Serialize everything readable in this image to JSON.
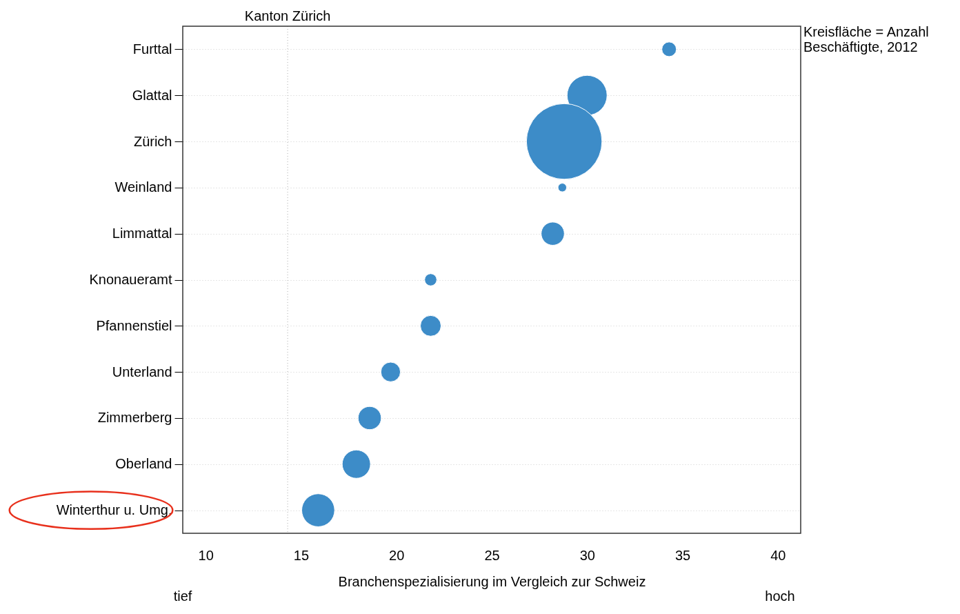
{
  "chart_data": {
    "type": "bubble",
    "orientation": "horizontal",
    "xlabel": "Branchenspezialisierung im Vergleich zur Schweiz",
    "categories": [
      "Furttal",
      "Glattal",
      "Zürich",
      "Weinland",
      "Limmattal",
      "Knonaueramt",
      "Pfannenstiel",
      "Unterland",
      "Zimmerberg",
      "Oberland",
      "Winterthur u. Umg."
    ],
    "values": [
      34.3,
      30.0,
      28.8,
      28.7,
      28.2,
      21.8,
      21.8,
      19.7,
      18.6,
      17.9,
      15.9
    ],
    "sizes": [
      0.037,
      0.28,
      1,
      0.013,
      0.094,
      0.026,
      0.075,
      0.067,
      0.094,
      0.14,
      0.19
    ],
    "color": "#3d8cc8",
    "xlim": [
      8.8,
      41.2
    ],
    "xticks": [
      10,
      15,
      20,
      25,
      30,
      35,
      40
    ],
    "grid": "y",
    "ref_lines": [
      {
        "axis": "x",
        "value": 14.3,
        "label": "Kanton Zürich",
        "color": "#c8c8c8",
        "line_style": "dotted"
      }
    ],
    "annotations": [
      "tief",
      "hoch",
      "Kreisfläche = Anzahl\nBeschäftigte, 2012"
    ]
  }
}
